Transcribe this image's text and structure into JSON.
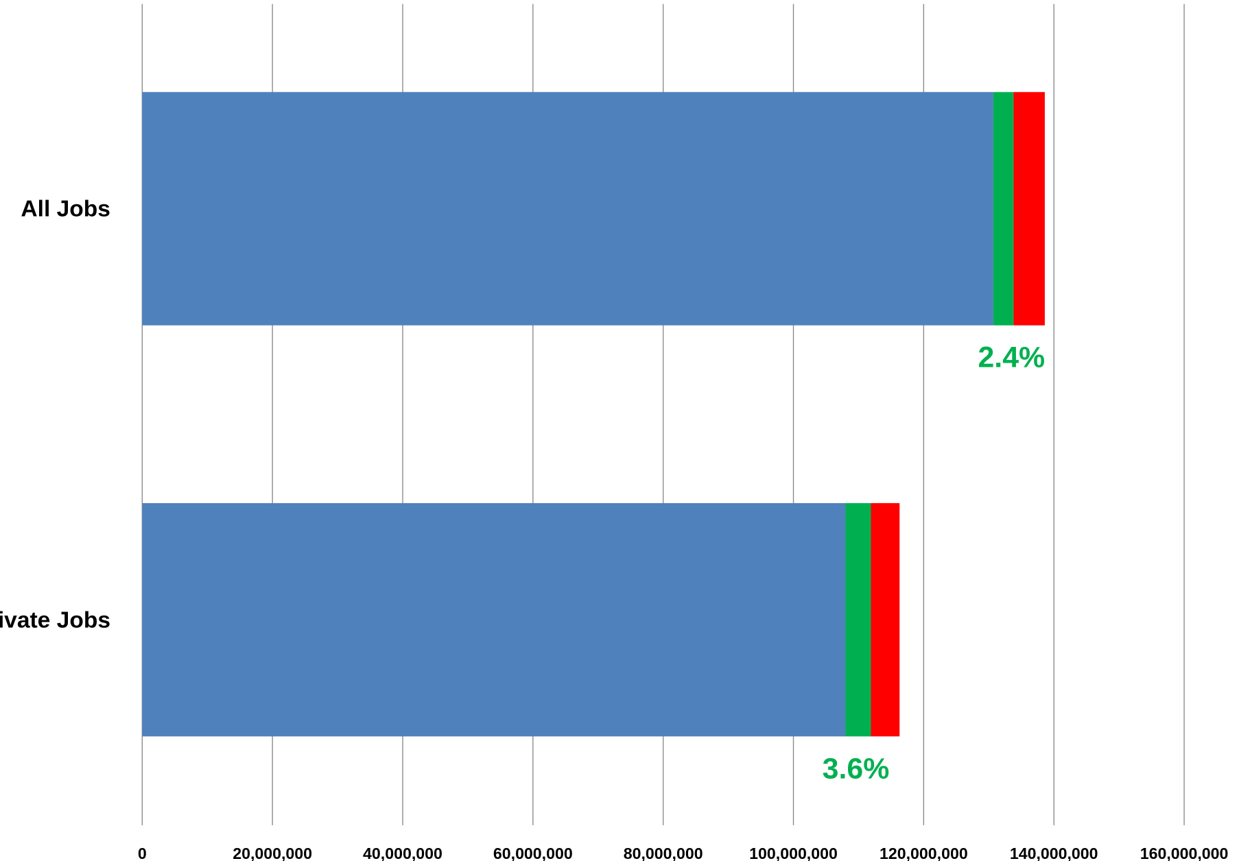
{
  "chart_data": {
    "type": "stacked_barh",
    "categories": [
      "All Jobs",
      "Private Jobs"
    ],
    "series": [
      {
        "color": "#4f81bd",
        "values": [
          130700000,
          108000000
        ]
      },
      {
        "color": "#00b050",
        "values": [
          3100000,
          3900000
        ]
      },
      {
        "color": "#ff0000",
        "values": [
          4800000,
          4400000
        ]
      }
    ],
    "annotations": [
      "2.4%",
      "3.6%"
    ],
    "annotation_color": "#00b050",
    "xlim": [
      0,
      160000000
    ],
    "xticks": [
      0,
      {
        "value": 20000000,
        "label": "20,000,000"
      },
      {
        "value": 40000000,
        "label": "40,000,000"
      },
      {
        "value": 60000000,
        "label": "60,000,000"
      },
      {
        "value": 80000000,
        "label": "80,000,000"
      },
      {
        "value": 100000000,
        "label": "100,000,000"
      },
      {
        "value": 120000000,
        "label": "120,000,000"
      },
      {
        "value": 140000000,
        "label": "140,000,000"
      },
      {
        "value": 160000000,
        "label": "160,000,000"
      }
    ],
    "grid": true
  }
}
